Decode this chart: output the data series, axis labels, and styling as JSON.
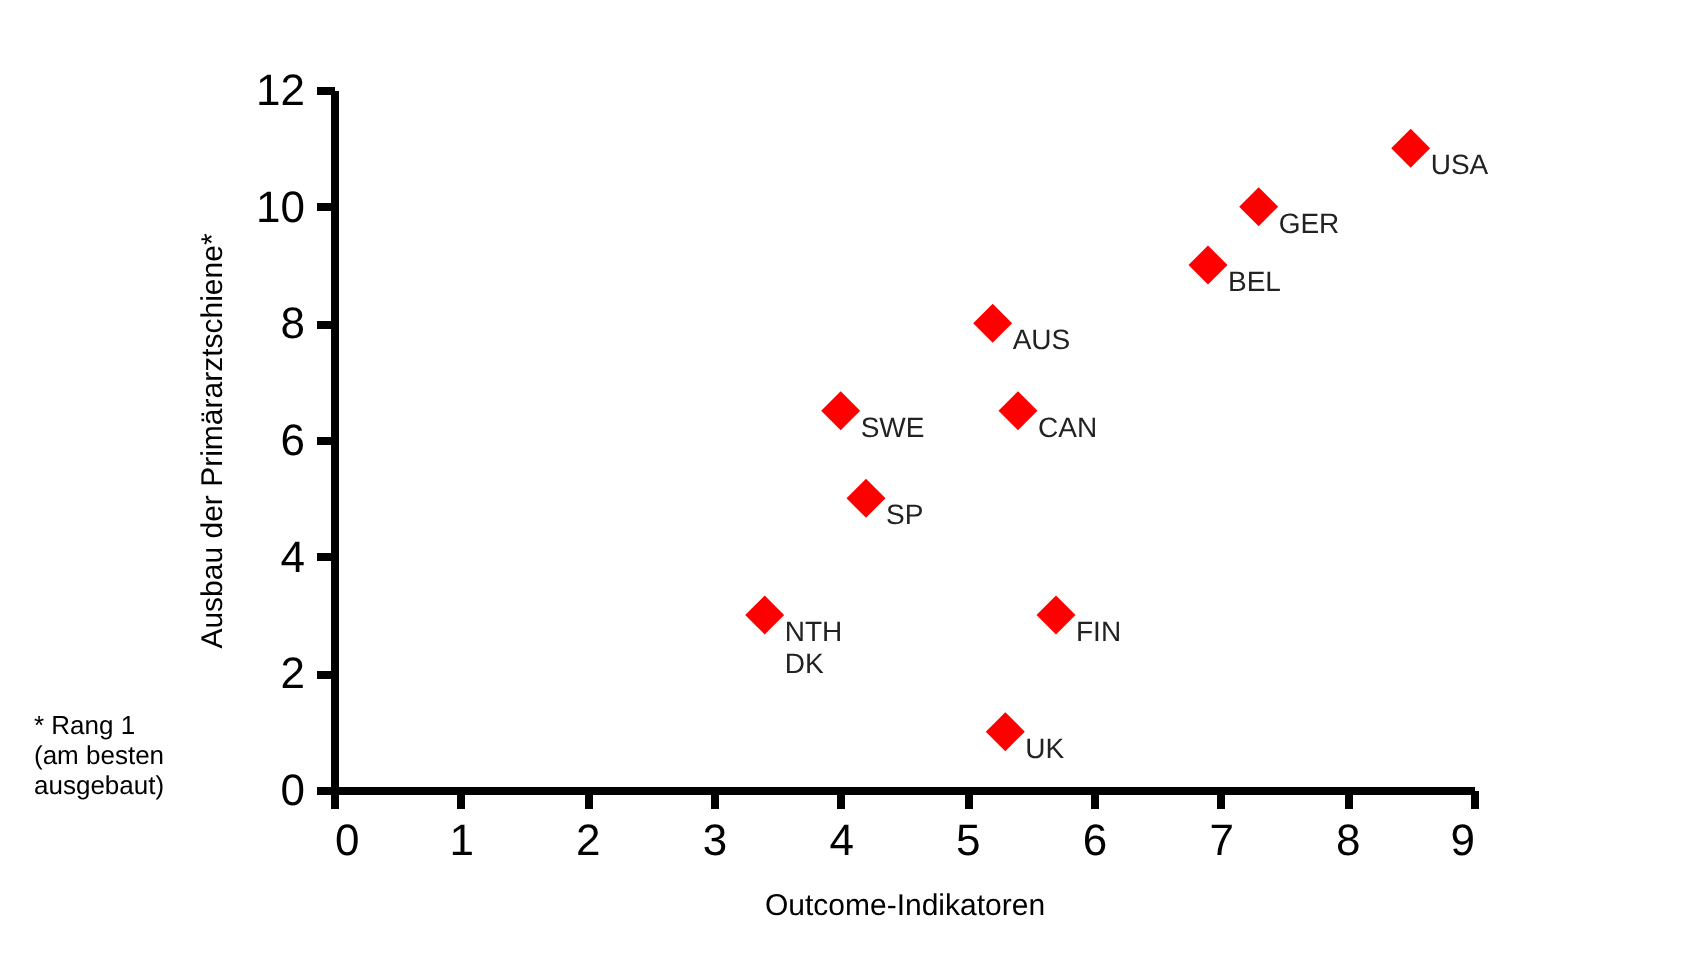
{
  "chart_data": {
    "type": "scatter",
    "xlabel": "Outcome-Indikatoren",
    "ylabel": "Ausbau der Primärarztschiene*",
    "x": [
      8.5,
      7.3,
      6.9,
      5.2,
      4.0,
      5.4,
      4.2,
      3.4,
      5.7,
      5.3
    ],
    "series": [
      {
        "color": "#ff0000",
        "values": [
          11,
          10,
          9,
          8,
          6.5,
          6.5,
          5,
          3,
          3,
          1
        ]
      }
    ],
    "xlim": [
      0,
      9
    ],
    "xticks": [
      0,
      1,
      2,
      3,
      4,
      5,
      6,
      7,
      8,
      9
    ],
    "ylim": [
      0,
      12
    ],
    "yticks": [
      0,
      2,
      4,
      6,
      8,
      10,
      12
    ],
    "marker": "diamond",
    "grid": false,
    "legend": false,
    "annotations": [
      {
        "text": "USA",
        "x": 8.5,
        "y": 11
      },
      {
        "text": "GER",
        "x": 7.3,
        "y": 10
      },
      {
        "text": "BEL",
        "x": 6.9,
        "y": 9
      },
      {
        "text": "AUS",
        "x": 5.2,
        "y": 8
      },
      {
        "text": "SWE",
        "x": 4.0,
        "y": 6.5
      },
      {
        "text": "CAN",
        "x": 5.4,
        "y": 6.5
      },
      {
        "text": "SP",
        "x": 4.2,
        "y": 5
      },
      {
        "text": "NTH\nDK",
        "x": 3.4,
        "y": 3
      },
      {
        "text": "FIN",
        "x": 5.7,
        "y": 3
      },
      {
        "text": "UK",
        "x": 5.3,
        "y": 1
      },
      "* Rang 1\n(am besten\nausgebaut)"
    ]
  }
}
